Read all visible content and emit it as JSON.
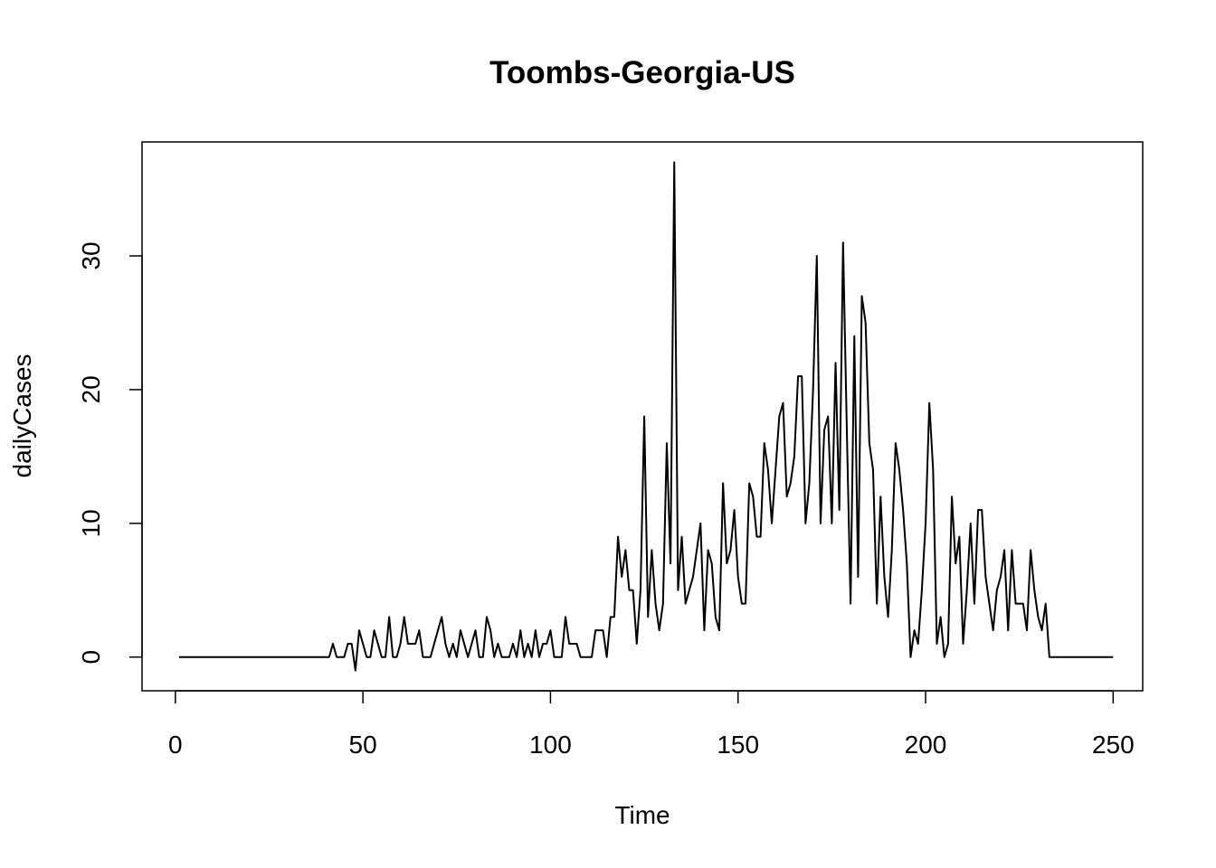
{
  "chart_data": {
    "type": "line",
    "title": "Toombs-Georgia-US",
    "xlabel": "Time",
    "ylabel": "dailyCases",
    "xlim": [
      1,
      248
    ],
    "ylim": [
      -1,
      37
    ],
    "xticks": [
      0,
      50,
      100,
      150,
      200,
      250
    ],
    "yticks": [
      0,
      10,
      20,
      30
    ],
    "grid": false,
    "legend": "none",
    "series": [
      {
        "color": "#000000",
        "x_start": 1,
        "values": [
          0,
          0,
          0,
          0,
          0,
          0,
          0,
          0,
          0,
          0,
          0,
          0,
          0,
          0,
          0,
          0,
          0,
          0,
          0,
          0,
          0,
          0,
          0,
          0,
          0,
          0,
          0,
          0,
          0,
          0,
          0,
          0,
          0,
          0,
          0,
          0,
          0,
          0,
          0,
          0,
          0,
          1,
          0,
          0,
          0,
          1,
          1,
          -1,
          2,
          1,
          0,
          0,
          2,
          1,
          0,
          0,
          3,
          0,
          0,
          1,
          3,
          1,
          1,
          1,
          2,
          0,
          0,
          0,
          1,
          2,
          3,
          1,
          0,
          1,
          0,
          2,
          1,
          0,
          1,
          2,
          0,
          0,
          3,
          2,
          0,
          1,
          0,
          0,
          0,
          1,
          0,
          2,
          0,
          1,
          0,
          2,
          0,
          1,
          1,
          2,
          0,
          0,
          0,
          3,
          1,
          1,
          1,
          0,
          0,
          0,
          0,
          2,
          2,
          2,
          0,
          3,
          3,
          9,
          6,
          8,
          5,
          5,
          1,
          5,
          18,
          3,
          8,
          4,
          2,
          4,
          16,
          7,
          37,
          5,
          9,
          4,
          5,
          6,
          8,
          10,
          2,
          8,
          7,
          3,
          2,
          13,
          7,
          8,
          11,
          6,
          4,
          4,
          13,
          12,
          9,
          9,
          16,
          14,
          10,
          14,
          18,
          19,
          12,
          13,
          15,
          21,
          21,
          10,
          13,
          20,
          30,
          10,
          17,
          18,
          10,
          22,
          11,
          31,
          17,
          4,
          24,
          6,
          27,
          25,
          16,
          14,
          4,
          12,
          6,
          3,
          8,
          16,
          14,
          11,
          7,
          0,
          2,
          1,
          5,
          10,
          19,
          14,
          1,
          3,
          0,
          1,
          12,
          7,
          9,
          1,
          5,
          10,
          4,
          11,
          11,
          6,
          4,
          2,
          5,
          6,
          8,
          2,
          8,
          4,
          4,
          4,
          2,
          8,
          5,
          3,
          2,
          4,
          0,
          0,
          0,
          0,
          0,
          0,
          0,
          0,
          0,
          0,
          0,
          0,
          0,
          0,
          0,
          0,
          0,
          0
        ]
      }
    ]
  }
}
